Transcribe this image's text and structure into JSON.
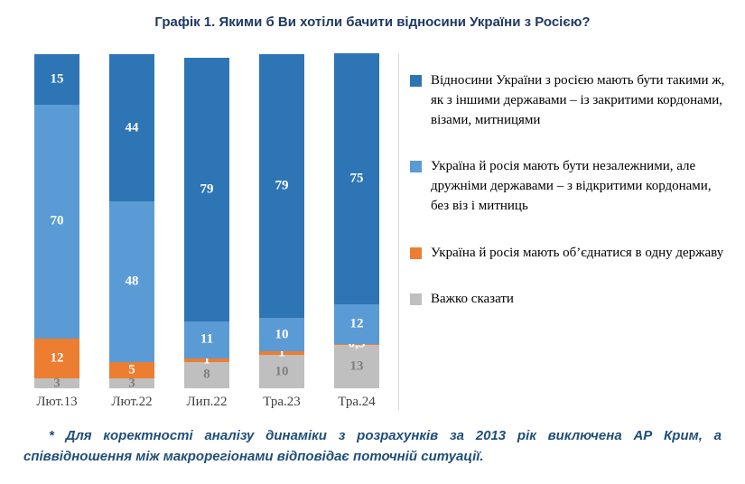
{
  "title": "Графік 1. Якими б Ви хотіли бачити відносини України з Росією?",
  "chart_data": {
    "type": "bar",
    "stacked": true,
    "categories": [
      "Лют.13",
      "Лют.22",
      "Лип.22",
      "Тра.23",
      "Тра.24"
    ],
    "series": [
      {
        "name": "Важко сказати",
        "color": "#BFBFBF",
        "label_color": "#7F7F7F",
        "values": [
          3,
          3,
          8,
          10,
          13
        ],
        "labels": [
          "3",
          "3",
          "8",
          "10",
          "13"
        ]
      },
      {
        "name": "Україна й росія мають об’єднатися в одну державу",
        "color": "#ED7D31",
        "label_color": "#FFFFFF",
        "values": [
          12,
          5,
          1,
          1,
          0.3
        ],
        "labels": [
          "12",
          "5",
          "1",
          "1",
          "0,3"
        ]
      },
      {
        "name": "Україна й росія мають бути незалежними, але дружніми державами – з відкритими кордонами, без віз і митниць",
        "color": "#5B9BD5",
        "label_color": "#FFFFFF",
        "values": [
          70,
          48,
          11,
          10,
          12
        ],
        "labels": [
          "70",
          "48",
          "11",
          "10",
          "12"
        ]
      },
      {
        "name": "Відносини України з росією мають бути такими ж, як з іншими державами – із закритими кордонами, візами, митницями",
        "color": "#2E75B6",
        "label_color": "#FFFFFF",
        "values": [
          15,
          44,
          79,
          79,
          75
        ],
        "labels": [
          "15",
          "44",
          "79",
          "79",
          "75"
        ]
      }
    ],
    "ylim": [
      0,
      100
    ],
    "grid": false,
    "legend_position": "right"
  },
  "legend": {
    "items": [
      {
        "color": "#2E75B6",
        "label": "Відносини України з росією мають бути такими ж, як з іншими державами  – із закритими кордонами, візами, митницями"
      },
      {
        "color": "#5B9BD5",
        "label": "Україна й росія мають бути незалежними, але дружніми державами  – з відкритими кордонами, без віз і митниць"
      },
      {
        "color": "#ED7D31",
        "label": "Україна й росія мають об’єднатися в одну державу"
      },
      {
        "color": "#BFBFBF",
        "label": "Важко сказати"
      }
    ]
  },
  "footnote": "* Для коректності аналізу динаміки з розрахунків за 2013 рік виключена АР Крим, а співвідношення між макрорегіонами відповідає поточній ситуації."
}
